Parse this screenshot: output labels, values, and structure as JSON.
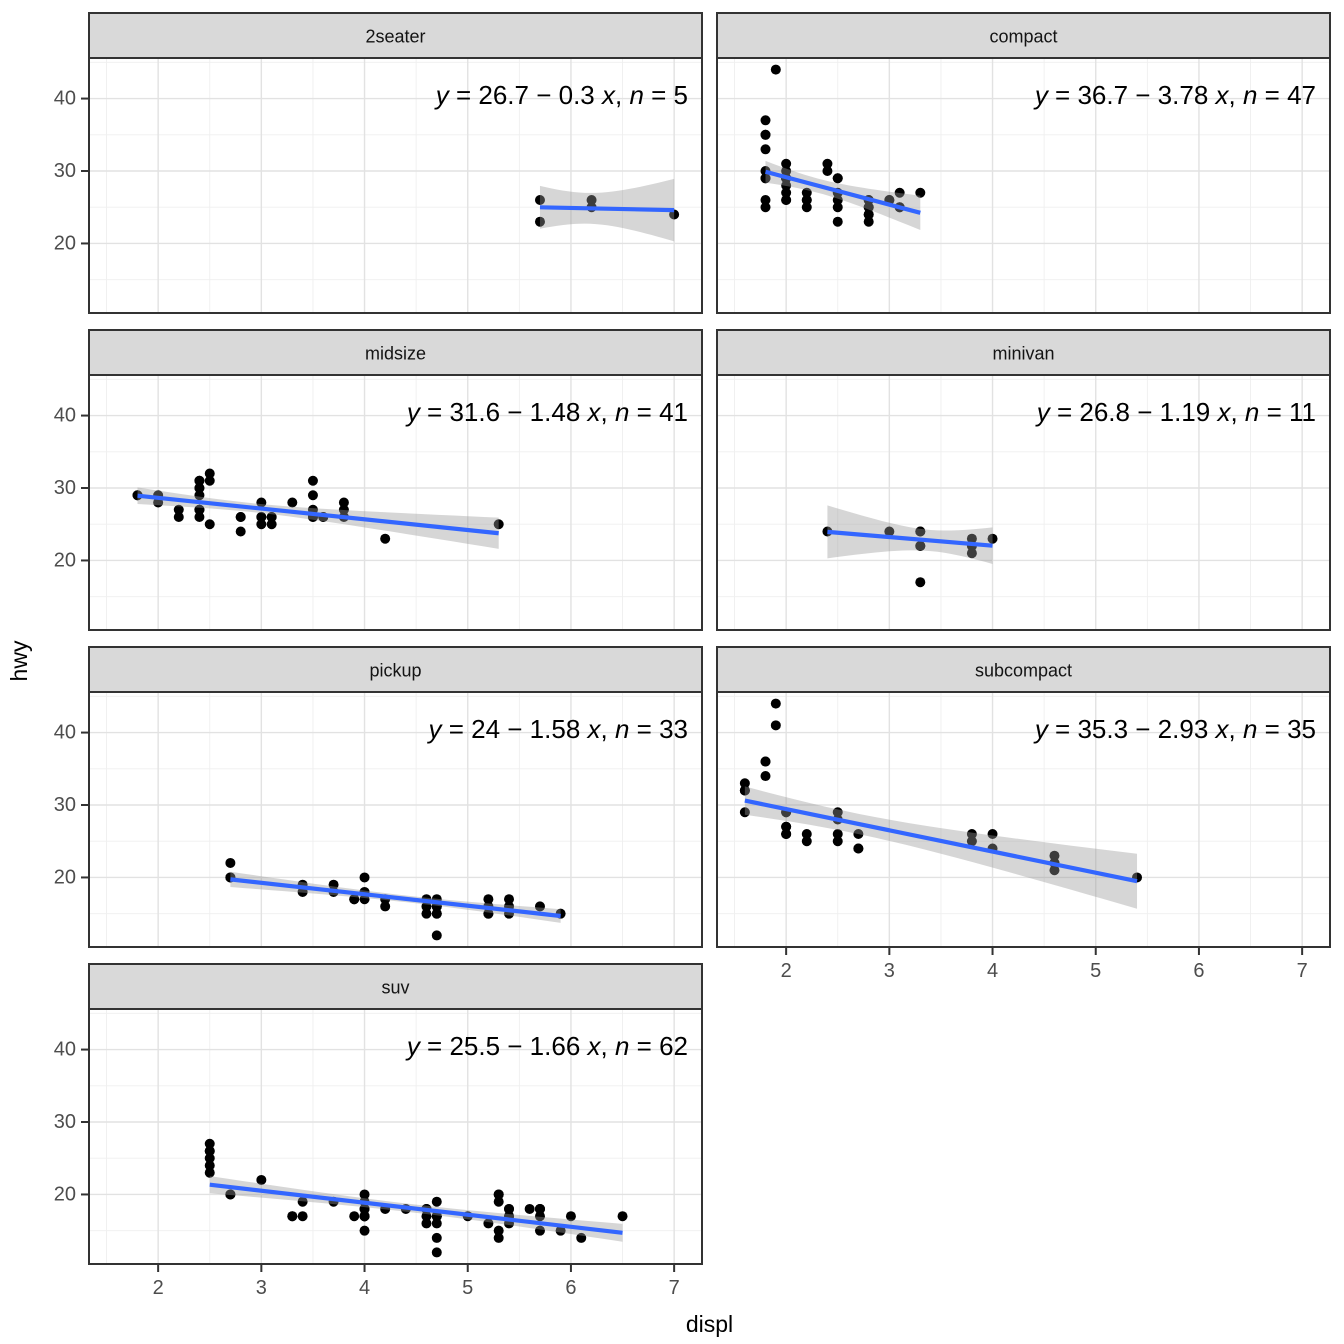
{
  "figure": {
    "x_axis_title": "displ",
    "y_axis_title": "hwy",
    "x_tick_labels": [
      "2",
      "3",
      "4",
      "5",
      "6",
      "7"
    ],
    "y_tick_labels": [
      "20",
      "30",
      "40"
    ],
    "colors": {
      "background": "#FFFFFF",
      "panel_background": "#FFFFFF",
      "smooth_line": "#3366FF",
      "confidence_band": "#999999",
      "point": "#000000",
      "strip_background": "#D9D9D9",
      "strip_text": "#141414",
      "panel_border": "#333333",
      "grid_major": "#E2E2E2",
      "grid_minor": "#EFEFEF",
      "axis_text": "#4D4D4D",
      "axis_title": "#000000"
    }
  },
  "chart_data": {
    "type": "scatter",
    "x_var": "displ",
    "y_var": "hwy",
    "legend": "none",
    "grid": "on",
    "ncol": 2,
    "x_domain": [
      1.33,
      7.27
    ],
    "y_domain": [
      10.4,
      45.6
    ],
    "x_ticks": [
      2,
      3,
      4,
      5,
      6,
      7
    ],
    "y_ticks": [
      20,
      30,
      40
    ],
    "x_minor": [
      1.5,
      2.5,
      3.5,
      4.5,
      5.5,
      6.5
    ],
    "y_minor": [
      15,
      25,
      35,
      45
    ],
    "facets": [
      {
        "title": "2seater",
        "eq_text": "y = 26.7 − 0.3 x, n = 5",
        "n": 5,
        "intercept": 26.7,
        "slope": -0.3,
        "eq_segments": [
          {
            "text": "y",
            "italic": true
          },
          {
            "text": " = 26.7 − 0.3 ",
            "italic": false
          },
          {
            "text": "x",
            "italic": true
          },
          {
            "text": ", ",
            "italic": false
          },
          {
            "text": "n",
            "italic": true
          },
          {
            "text": " = 5",
            "italic": false
          }
        ],
        "points": [
          [
            5.7,
            26
          ],
          [
            5.7,
            23
          ],
          [
            6.2,
            26
          ],
          [
            6.2,
            25
          ],
          [
            7.0,
            24
          ]
        ]
      },
      {
        "title": "compact",
        "eq_text": "y = 36.7 − 3.78 x, n = 47",
        "n": 47,
        "intercept": 36.7,
        "slope": -3.78,
        "eq_segments": [
          {
            "text": "y",
            "italic": true
          },
          {
            "text": " = 36.7 − 3.78 ",
            "italic": false
          },
          {
            "text": "x",
            "italic": true
          },
          {
            "text": ", ",
            "italic": false
          },
          {
            "text": "n",
            "italic": true
          },
          {
            "text": " = 47",
            "italic": false
          }
        ],
        "points": [
          [
            1.8,
            29
          ],
          [
            1.8,
            29
          ],
          [
            2.0,
            31
          ],
          [
            2.0,
            30
          ],
          [
            2.8,
            26
          ],
          [
            2.8,
            26
          ],
          [
            3.1,
            27
          ],
          [
            1.8,
            26
          ],
          [
            1.8,
            25
          ],
          [
            2.0,
            28
          ],
          [
            2.0,
            27
          ],
          [
            2.8,
            25
          ],
          [
            2.8,
            25
          ],
          [
            3.1,
            25
          ],
          [
            3.1,
            25
          ],
          [
            2.2,
            26
          ],
          [
            2.2,
            27
          ],
          [
            2.4,
            30
          ],
          [
            2.4,
            31
          ],
          [
            3.0,
            26
          ],
          [
            3.0,
            26
          ],
          [
            3.3,
            27
          ],
          [
            1.8,
            30
          ],
          [
            1.8,
            33
          ],
          [
            1.8,
            35
          ],
          [
            1.8,
            35
          ],
          [
            1.8,
            37
          ],
          [
            2.0,
            29
          ],
          [
            2.0,
            26
          ],
          [
            2.0,
            29
          ],
          [
            2.0,
            29
          ],
          [
            2.8,
            24
          ],
          [
            1.9,
            44
          ],
          [
            2.0,
            29
          ],
          [
            2.0,
            26
          ],
          [
            2.0,
            29
          ],
          [
            2.0,
            29
          ],
          [
            2.5,
            29
          ],
          [
            2.5,
            29
          ],
          [
            2.8,
            23
          ],
          [
            2.8,
            24
          ],
          [
            2.2,
            26
          ],
          [
            2.2,
            25
          ],
          [
            2.5,
            26
          ],
          [
            2.5,
            25
          ],
          [
            2.5,
            27
          ],
          [
            2.5,
            23
          ]
        ]
      },
      {
        "title": "midsize",
        "eq_text": "y = 31.6 − 1.48 x, n = 41",
        "n": 41,
        "intercept": 31.6,
        "slope": -1.48,
        "eq_segments": [
          {
            "text": "y",
            "italic": true
          },
          {
            "text": " = 31.6 − 1.48 ",
            "italic": false
          },
          {
            "text": "x",
            "italic": true
          },
          {
            "text": ", ",
            "italic": false
          },
          {
            "text": "n",
            "italic": true
          },
          {
            "text": " = 41",
            "italic": false
          }
        ],
        "points": [
          [
            2.8,
            24
          ],
          [
            3.1,
            25
          ],
          [
            4.2,
            23
          ],
          [
            2.4,
            27
          ],
          [
            2.4,
            30
          ],
          [
            3.1,
            26
          ],
          [
            3.5,
            29
          ],
          [
            3.6,
            26
          ],
          [
            2.4,
            26
          ],
          [
            2.4,
            27
          ],
          [
            2.4,
            30
          ],
          [
            2.5,
            25
          ],
          [
            3.3,
            28
          ],
          [
            2.4,
            29
          ],
          [
            2.4,
            27
          ],
          [
            2.5,
            31
          ],
          [
            2.5,
            32
          ],
          [
            3.5,
            26
          ],
          [
            3.5,
            27
          ],
          [
            3.0,
            26
          ],
          [
            3.0,
            25
          ],
          [
            3.5,
            26
          ],
          [
            3.1,
            26
          ],
          [
            3.8,
            26
          ],
          [
            3.8,
            27
          ],
          [
            3.8,
            28
          ],
          [
            5.3,
            25
          ],
          [
            2.2,
            26
          ],
          [
            2.2,
            27
          ],
          [
            2.4,
            31
          ],
          [
            2.4,
            31
          ],
          [
            3.0,
            26
          ],
          [
            3.0,
            28
          ],
          [
            3.5,
            31
          ],
          [
            1.8,
            29
          ],
          [
            1.8,
            29
          ],
          [
            2.0,
            28
          ],
          [
            2.0,
            29
          ],
          [
            2.8,
            26
          ],
          [
            2.8,
            26
          ],
          [
            3.6,
            26
          ]
        ]
      },
      {
        "title": "minivan",
        "eq_text": "y = 26.8 − 1.19 x, n = 11",
        "n": 11,
        "intercept": 26.8,
        "slope": -1.19,
        "eq_segments": [
          {
            "text": "y",
            "italic": true
          },
          {
            "text": " = 26.8 − 1.19 ",
            "italic": false
          },
          {
            "text": "x",
            "italic": true
          },
          {
            "text": ", ",
            "italic": false
          },
          {
            "text": "n",
            "italic": true
          },
          {
            "text": " = 11",
            "italic": false
          }
        ],
        "points": [
          [
            2.4,
            24
          ],
          [
            3.0,
            24
          ],
          [
            3.3,
            24
          ],
          [
            3.3,
            24
          ],
          [
            3.3,
            22
          ],
          [
            3.3,
            22
          ],
          [
            3.3,
            17
          ],
          [
            3.8,
            23
          ],
          [
            3.8,
            22
          ],
          [
            3.8,
            21
          ],
          [
            4.0,
            23
          ]
        ]
      },
      {
        "title": "pickup",
        "eq_text": "y = 24 − 1.58 x, n = 33",
        "n": 33,
        "intercept": 24,
        "slope": -1.58,
        "eq_segments": [
          {
            "text": "y",
            "italic": true
          },
          {
            "text": " = 24 − 1.58 ",
            "italic": false
          },
          {
            "text": "x",
            "italic": true
          },
          {
            "text": ", ",
            "italic": false
          },
          {
            "text": "n",
            "italic": true
          },
          {
            "text": " = 33",
            "italic": false
          }
        ],
        "points": [
          [
            2.7,
            22
          ],
          [
            2.7,
            20
          ],
          [
            2.7,
            20
          ],
          [
            3.4,
            19
          ],
          [
            3.4,
            18
          ],
          [
            3.7,
            19
          ],
          [
            3.7,
            18
          ],
          [
            3.9,
            17
          ],
          [
            3.9,
            17
          ],
          [
            4.0,
            20
          ],
          [
            4.0,
            18
          ],
          [
            4.0,
            17
          ],
          [
            4.2,
            17
          ],
          [
            4.2,
            16
          ],
          [
            4.6,
            17
          ],
          [
            4.6,
            16
          ],
          [
            4.6,
            15
          ],
          [
            4.7,
            17
          ],
          [
            4.7,
            16
          ],
          [
            4.7,
            16
          ],
          [
            4.7,
            16
          ],
          [
            4.7,
            15
          ],
          [
            4.7,
            15
          ],
          [
            4.7,
            12
          ],
          [
            5.2,
            17
          ],
          [
            5.2,
            16
          ],
          [
            5.2,
            15
          ],
          [
            5.2,
            15
          ],
          [
            5.4,
            17
          ],
          [
            5.4,
            16
          ],
          [
            5.4,
            15
          ],
          [
            5.7,
            16
          ],
          [
            5.9,
            15
          ]
        ]
      },
      {
        "title": "subcompact",
        "eq_text": "y = 35.3 − 2.93 x, n = 35",
        "n": 35,
        "intercept": 35.3,
        "slope": -2.93,
        "eq_segments": [
          {
            "text": "y",
            "italic": true
          },
          {
            "text": " = 35.3 − 2.93 ",
            "italic": false
          },
          {
            "text": "x",
            "italic": true
          },
          {
            "text": ", ",
            "italic": false
          },
          {
            "text": "n",
            "italic": true
          },
          {
            "text": " = 35",
            "italic": false
          }
        ],
        "points": [
          [
            1.6,
            33
          ],
          [
            1.6,
            32
          ],
          [
            1.6,
            32
          ],
          [
            1.6,
            29
          ],
          [
            1.6,
            32
          ],
          [
            1.8,
            36
          ],
          [
            1.8,
            36
          ],
          [
            1.8,
            34
          ],
          [
            2.0,
            29
          ],
          [
            3.8,
            26
          ],
          [
            3.8,
            25
          ],
          [
            4.0,
            26
          ],
          [
            4.0,
            24
          ],
          [
            4.6,
            21
          ],
          [
            4.6,
            22
          ],
          [
            4.6,
            23
          ],
          [
            4.6,
            22
          ],
          [
            5.4,
            20
          ],
          [
            1.9,
            44
          ],
          [
            1.9,
            41
          ],
          [
            2.0,
            29
          ],
          [
            2.0,
            26
          ],
          [
            2.5,
            28
          ],
          [
            2.5,
            29
          ],
          [
            2.0,
            26
          ],
          [
            2.0,
            27
          ],
          [
            2.0,
            27
          ],
          [
            2.0,
            26
          ],
          [
            2.7,
            24
          ],
          [
            2.7,
            24
          ],
          [
            2.7,
            26
          ],
          [
            2.2,
            26
          ],
          [
            2.2,
            25
          ],
          [
            2.5,
            26
          ],
          [
            2.5,
            25
          ]
        ]
      },
      {
        "title": "suv",
        "eq_text": "y = 25.5 − 1.66 x, n = 62",
        "n": 62,
        "intercept": 25.5,
        "slope": -1.66,
        "eq_segments": [
          {
            "text": "y",
            "italic": true
          },
          {
            "text": " = 25.5 − 1.66 ",
            "italic": false
          },
          {
            "text": "x",
            "italic": true
          },
          {
            "text": ", ",
            "italic": false
          },
          {
            "text": "n",
            "italic": true
          },
          {
            "text": " = 62",
            "italic": false
          }
        ],
        "points": [
          [
            5.3,
            20
          ],
          [
            5.3,
            15
          ],
          [
            5.3,
            20
          ],
          [
            5.7,
            17
          ],
          [
            6.0,
            17
          ],
          [
            5.3,
            19
          ],
          [
            5.3,
            14
          ],
          [
            5.7,
            15
          ],
          [
            6.5,
            17
          ],
          [
            3.9,
            17
          ],
          [
            4.7,
            17
          ],
          [
            4.7,
            17
          ],
          [
            4.7,
            12
          ],
          [
            5.2,
            16
          ],
          [
            5.7,
            18
          ],
          [
            5.9,
            15
          ],
          [
            4.6,
            17
          ],
          [
            5.4,
            17
          ],
          [
            5.4,
            18
          ],
          [
            4.0,
            17
          ],
          [
            4.0,
            17
          ],
          [
            4.0,
            17
          ],
          [
            4.0,
            18
          ],
          [
            4.6,
            18
          ],
          [
            4.6,
            18
          ],
          [
            3.0,
            22
          ],
          [
            3.7,
            19
          ],
          [
            4.0,
            17
          ],
          [
            4.7,
            17
          ],
          [
            4.7,
            19
          ],
          [
            4.7,
            14
          ],
          [
            5.7,
            18
          ],
          [
            6.1,
            14
          ],
          [
            4.0,
            15
          ],
          [
            4.2,
            18
          ],
          [
            4.4,
            18
          ],
          [
            4.6,
            16
          ],
          [
            5.4,
            17
          ],
          [
            5.4,
            16
          ],
          [
            5.4,
            18
          ],
          [
            4.0,
            17
          ],
          [
            4.0,
            19
          ],
          [
            4.6,
            18
          ],
          [
            5.0,
            17
          ],
          [
            3.3,
            17
          ],
          [
            3.3,
            17
          ],
          [
            4.0,
            18
          ],
          [
            5.6,
            18
          ],
          [
            2.5,
            27
          ],
          [
            2.5,
            26
          ],
          [
            2.5,
            26
          ],
          [
            2.5,
            25
          ],
          [
            2.5,
            24
          ],
          [
            2.5,
            23
          ],
          [
            2.7,
            20
          ],
          [
            2.7,
            20
          ],
          [
            3.4,
            19
          ],
          [
            3.4,
            17
          ],
          [
            4.0,
            20
          ],
          [
            4.7,
            17
          ],
          [
            4.7,
            16
          ],
          [
            5.7,
            18
          ]
        ]
      }
    ]
  }
}
